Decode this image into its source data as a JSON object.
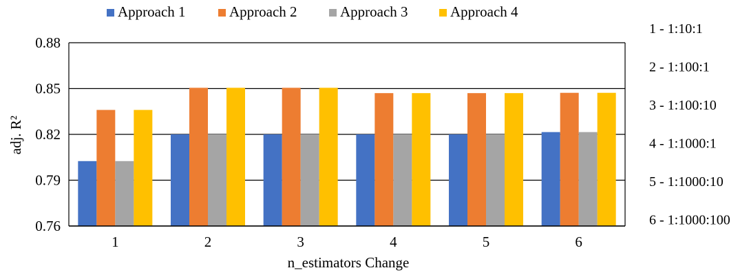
{
  "chart_data": {
    "type": "bar",
    "xlabel": "n_estimators Change",
    "ylabel": "adj. R²",
    "categories": [
      "1",
      "2",
      "3",
      "4",
      "5",
      "6"
    ],
    "ylim": [
      0.76,
      0.88
    ],
    "yticks": [
      "0.76",
      "0.79",
      "0.82",
      "0.85",
      "0.88"
    ],
    "ytick_values": [
      0.76,
      0.79,
      0.82,
      0.85,
      0.88
    ],
    "grid": "horizontal",
    "legend_position": "top",
    "series": [
      {
        "name": "Approach 1",
        "color": "#4472C4",
        "values": [
          0.8025,
          0.82,
          0.82,
          0.82,
          0.82,
          0.8215
        ]
      },
      {
        "name": "Approach 2",
        "color": "#ED7D31",
        "values": [
          0.836,
          0.8505,
          0.8505,
          0.847,
          0.847,
          0.8472
        ]
      },
      {
        "name": "Approach 3",
        "color": "#A5A5A5",
        "values": [
          0.8025,
          0.82,
          0.82,
          0.82,
          0.82,
          0.8215
        ]
      },
      {
        "name": "Approach 4",
        "color": "#FFC000",
        "values": [
          0.836,
          0.8505,
          0.8505,
          0.847,
          0.847,
          0.8472
        ]
      }
    ],
    "annotations": [
      "1 - 1:10:1",
      "2 - 1:100:1",
      "3 - 1:100:10",
      "4 - 1:1000:1",
      "5 - 1:1000:10",
      "6 - 1:1000:100"
    ]
  }
}
